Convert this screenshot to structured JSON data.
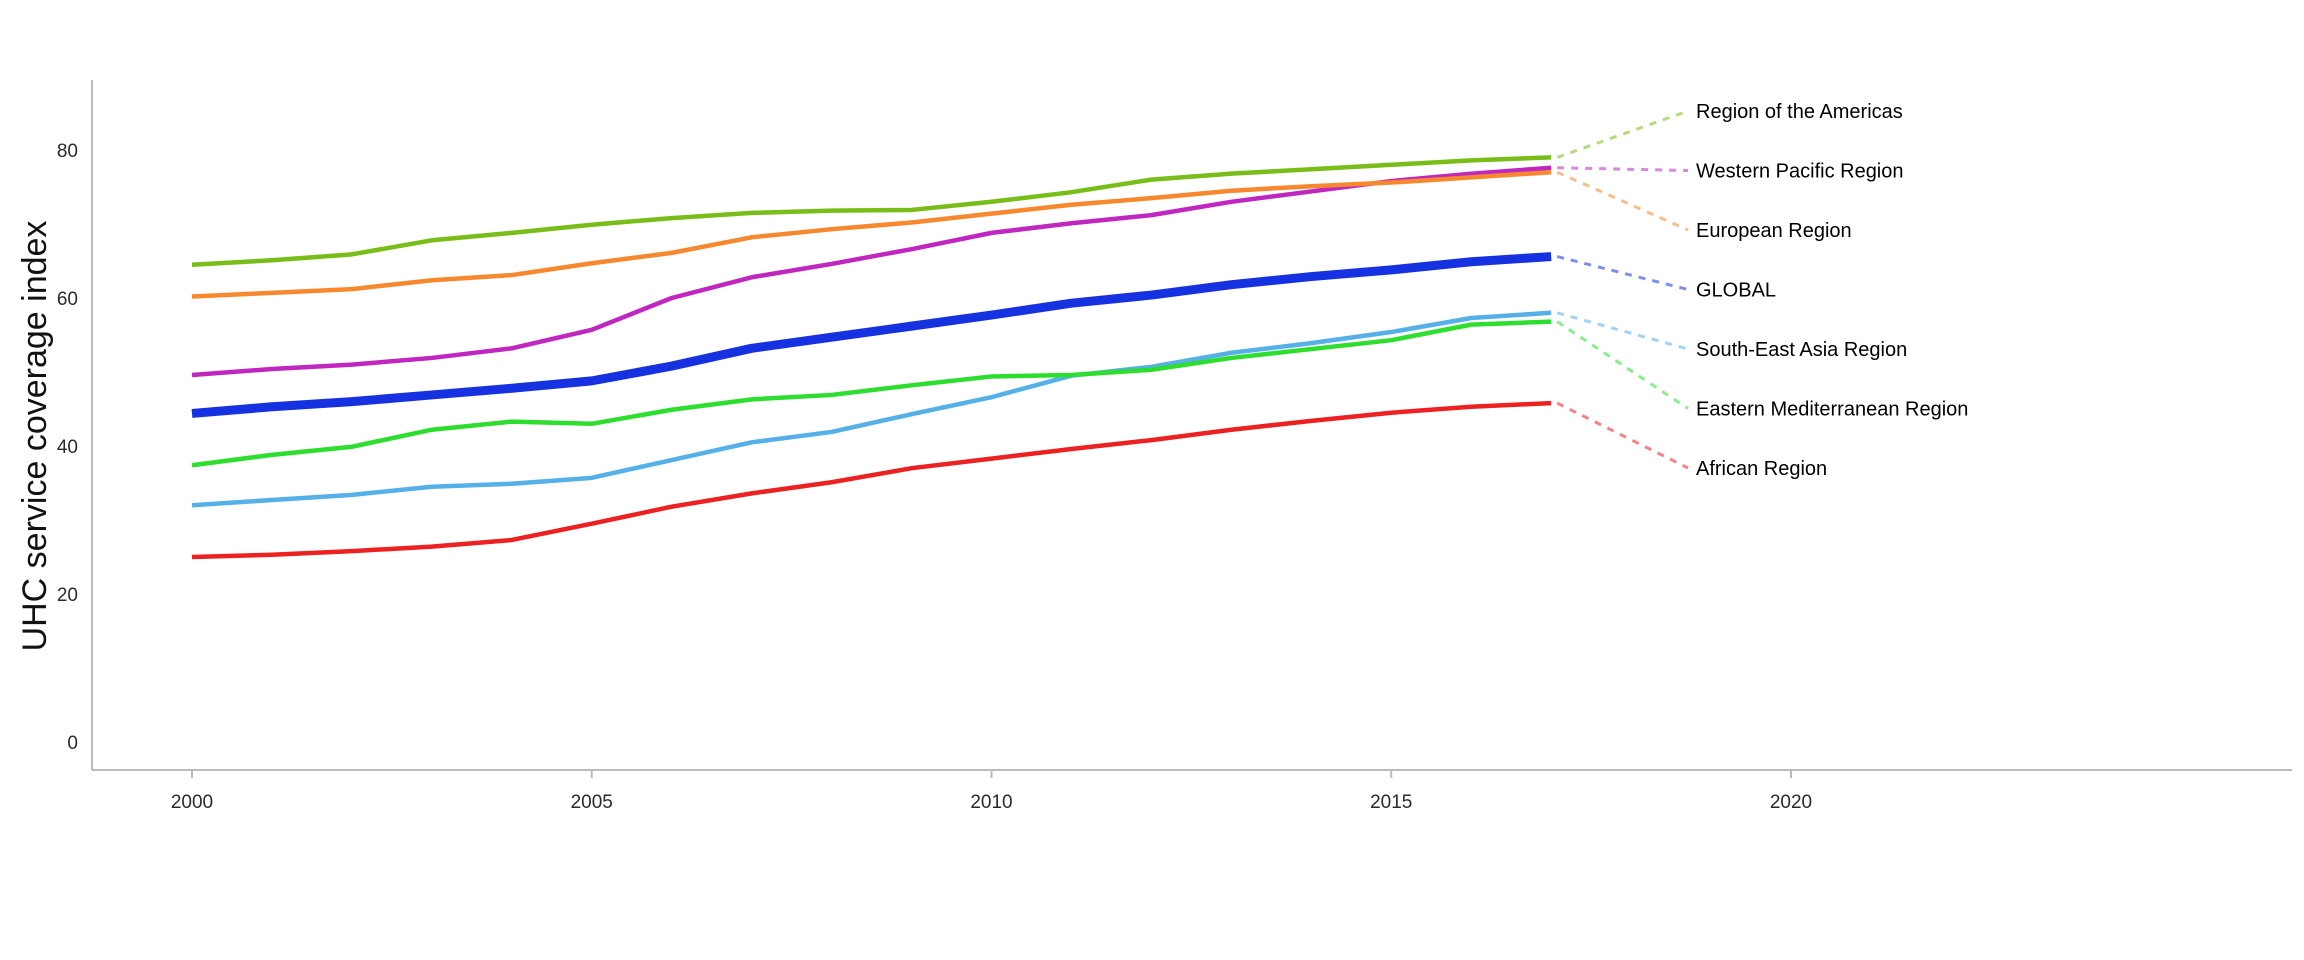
{
  "chart_data": {
    "type": "line",
    "title": "",
    "xlabel": "",
    "ylabel": "UHC service coverage index",
    "grid": false,
    "legend_position": "right-of-line-ends",
    "x_ticks": [
      2000,
      2005,
      2010,
      2015,
      2020
    ],
    "y_ticks": [
      0,
      20,
      40,
      60,
      80
    ],
    "xlim": [
      1998.7,
      2026.3
    ],
    "ylim": [
      0,
      89
    ],
    "years": [
      2000,
      2001,
      2002,
      2003,
      2004,
      2005,
      2006,
      2007,
      2008,
      2009,
      2010,
      2011,
      2012,
      2013,
      2014,
      2015,
      2016,
      2017
    ],
    "series": [
      {
        "name": "Region of the Americas",
        "color": "#79bd19",
        "line_width": 4.5,
        "values": [
          64.5,
          65.1,
          65.9,
          67.8,
          68.8,
          69.9,
          70.8,
          71.5,
          71.8,
          71.9,
          73.0,
          74.3,
          76.0,
          76.8,
          77.4,
          78.0,
          78.6,
          79.0
        ]
      },
      {
        "name": "Western Pacific Region",
        "color": "#bf27bf",
        "line_width": 4.5,
        "values": [
          49.6,
          50.4,
          51.0,
          51.9,
          53.2,
          55.7,
          60.0,
          62.8,
          64.6,
          66.6,
          68.8,
          70.1,
          71.2,
          73.0,
          74.4,
          75.8,
          76.8,
          77.6
        ]
      },
      {
        "name": "European Region",
        "color": "#f8882e",
        "line_width": 4.5,
        "values": [
          60.2,
          60.7,
          61.2,
          62.4,
          63.1,
          64.7,
          66.1,
          68.2,
          69.3,
          70.2,
          71.4,
          72.6,
          73.5,
          74.5,
          75.1,
          75.6,
          76.3,
          77.0
        ]
      },
      {
        "name": "GLOBAL",
        "color": "#1632e0",
        "line_width": 9,
        "values": [
          44.4,
          45.3,
          46.0,
          46.9,
          47.8,
          48.8,
          50.8,
          53.2,
          54.7,
          56.2,
          57.7,
          59.3,
          60.4,
          61.8,
          62.9,
          63.8,
          64.9,
          65.6
        ]
      },
      {
        "name": "South-East Asia Region",
        "color": "#55b0e8",
        "line_width": 4.5,
        "values": [
          32.0,
          32.7,
          33.4,
          34.5,
          34.9,
          35.7,
          38.1,
          40.5,
          41.9,
          44.3,
          46.6,
          49.5,
          50.7,
          52.6,
          53.9,
          55.4,
          57.3,
          58.0
        ]
      },
      {
        "name": "Eastern Mediterranean Region",
        "color": "#2ede2e",
        "line_width": 4.5,
        "values": [
          37.4,
          38.8,
          39.9,
          42.2,
          43.3,
          43.0,
          44.9,
          46.3,
          46.9,
          48.2,
          49.4,
          49.6,
          50.3,
          51.9,
          53.1,
          54.3,
          56.4,
          56.8
        ]
      },
      {
        "name": "African Region",
        "color": "#ec2121",
        "line_width": 4.5,
        "values": [
          25.0,
          25.3,
          25.8,
          26.4,
          27.3,
          29.5,
          31.8,
          33.6,
          35.1,
          37.0,
          38.3,
          39.6,
          40.8,
          42.2,
          43.4,
          44.5,
          45.3,
          45.8
        ]
      }
    ],
    "legend_order": [
      "Region of the Americas",
      "Western Pacific Region",
      "European Region",
      "GLOBAL",
      "South-East Asia Region",
      "Eastern Mediterranean Region",
      "African Region"
    ]
  }
}
